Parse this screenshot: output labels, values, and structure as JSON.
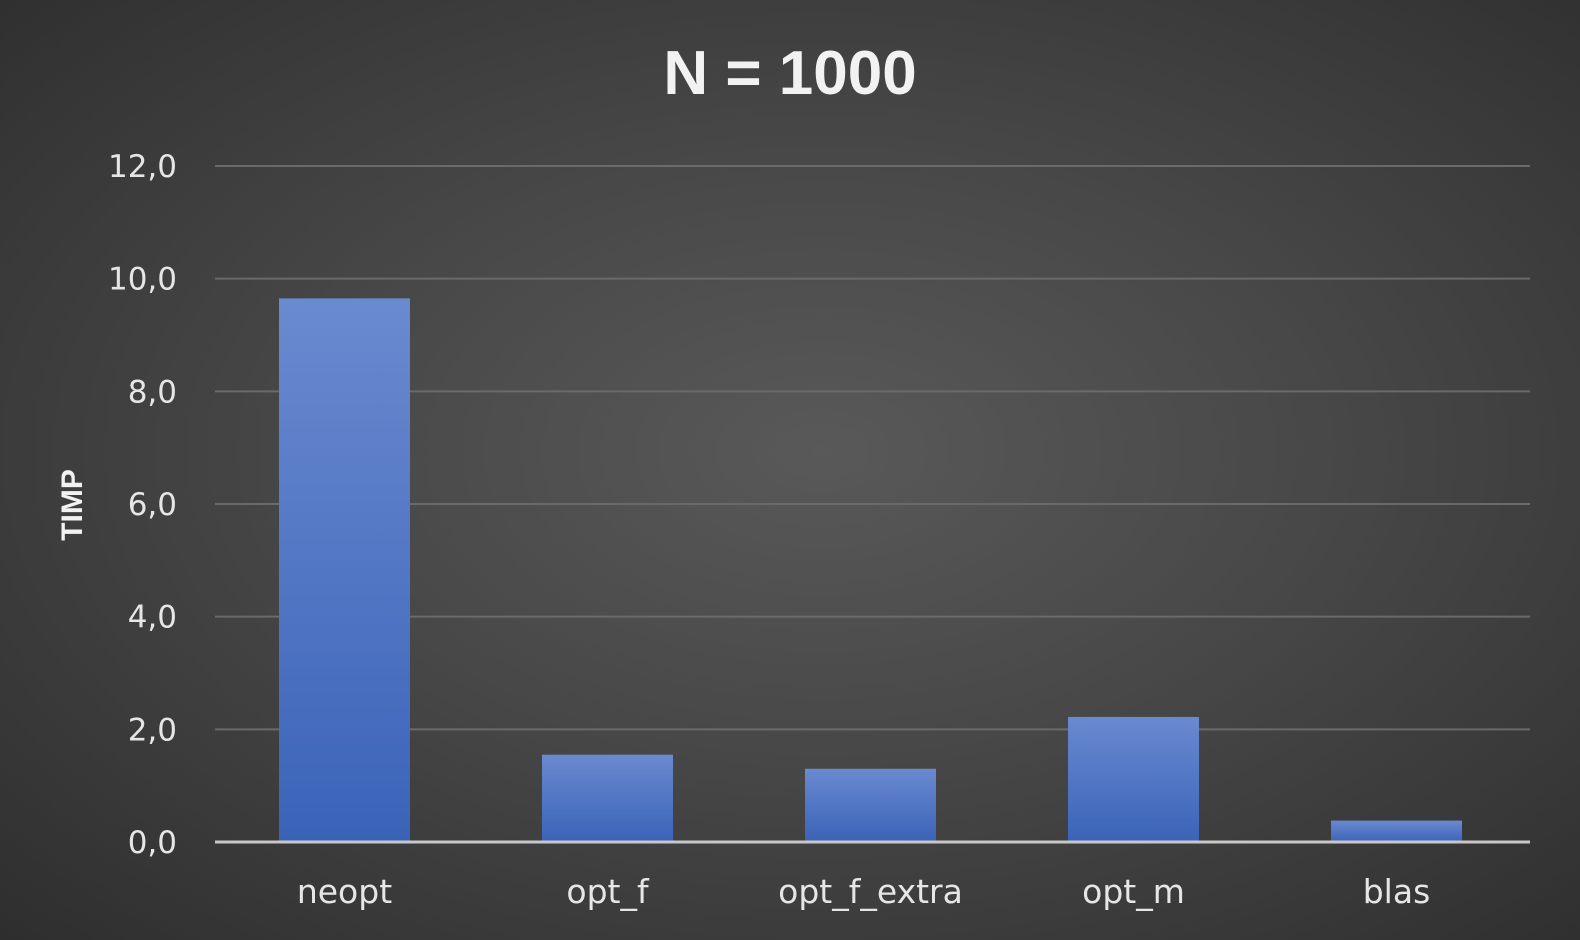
{
  "chart_data": {
    "type": "bar",
    "title": "N = 1000",
    "xlabel": "",
    "ylabel": "TIMP",
    "categories": [
      "neopt",
      "opt_f",
      "opt_f_extra",
      "opt_m",
      "blas"
    ],
    "series": [
      {
        "values": [
          9.65,
          1.55,
          1.3,
          2.22,
          0.38
        ]
      }
    ],
    "ylim": [
      0,
      12
    ],
    "yticks": [
      0,
      2,
      4,
      6,
      8,
      10,
      12
    ],
    "ytick_labels": [
      "0,0",
      "2,0",
      "4,0",
      "6,0",
      "8,0",
      "10,0",
      "12,0"
    ],
    "grid": true,
    "legend": "none",
    "colors": {
      "bar_top": "#6a8ad0",
      "bar_bottom": "#3a63b8",
      "background": "#4a4a4a",
      "text": "#f2f2f2"
    }
  }
}
